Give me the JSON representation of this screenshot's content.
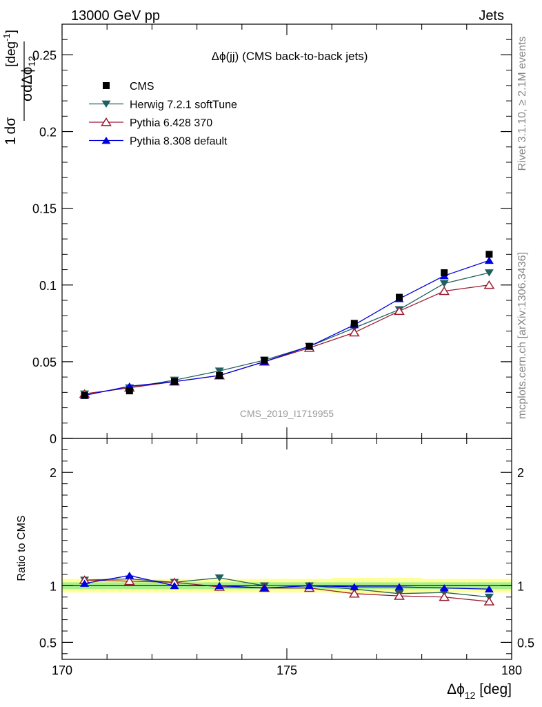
{
  "header": {
    "left": "13000 GeV pp",
    "right": "Jets"
  },
  "side_labels": {
    "rivet": "Rivet 3.1.10, ≥ 2.1M events",
    "mcplots": "mcplots.cern.ch [arXiv:1306.3436]"
  },
  "watermark": "CMS_2019_I1719955",
  "chart_data": [
    {
      "type": "scatter",
      "title": "Δϕ(jj) (CMS back-to-back jets)",
      "ylabel": "1/σ dσ/dΔϕ12 [deg⁻¹]",
      "xlim": [
        170,
        180
      ],
      "ylim": [
        0,
        0.27
      ],
      "y_ticks": [
        "0",
        "0.05",
        "0.1",
        "0.15",
        "0.2",
        "0.25"
      ],
      "x": [
        170.5,
        171.5,
        172.5,
        173.5,
        174.5,
        175.5,
        176.5,
        177.5,
        178.5,
        179.5
      ],
      "series": [
        {
          "name": "CMS",
          "color": "#000000",
          "marker": "square",
          "values": [
            0.028,
            0.031,
            0.037,
            0.041,
            0.051,
            0.06,
            0.075,
            0.092,
            0.108,
            0.12
          ]
        },
        {
          "name": "Herwig 7.2.1 softTune",
          "color": "#1f5f5f",
          "marker": "triangle-down",
          "values": [
            0.029,
            0.033,
            0.038,
            0.044,
            0.051,
            0.06,
            0.072,
            0.084,
            0.101,
            0.108
          ]
        },
        {
          "name": "Pythia 6.428 370",
          "color": "#9b1b30",
          "marker": "triangle-up-open",
          "values": [
            0.029,
            0.033,
            0.037,
            0.041,
            0.05,
            0.059,
            0.069,
            0.083,
            0.096,
            0.1
          ]
        },
        {
          "name": "Pythia 8.308 default",
          "color": "#0000dd",
          "marker": "triangle-up",
          "values": [
            0.028,
            0.034,
            0.037,
            0.041,
            0.05,
            0.06,
            0.074,
            0.091,
            0.106,
            0.116
          ]
        }
      ]
    },
    {
      "type": "scatter",
      "ylabel": "Ratio to CMS",
      "xlabel": "Δϕ12 [deg]",
      "xlim": [
        170,
        180
      ],
      "ylim": [
        0.35,
        2.3
      ],
      "y_ticks": [
        "0.5",
        "1",
        "2"
      ],
      "x_ticks": [
        "170",
        "175",
        "180"
      ],
      "band_outer": [
        0.06,
        0.06,
        0.06,
        0.06,
        0.06,
        0.06,
        0.07,
        0.07,
        0.06,
        0.06
      ],
      "band_inner": [
        0.03,
        0.03,
        0.03,
        0.03,
        0.03,
        0.03,
        0.03,
        0.03,
        0.03,
        0.03
      ],
      "x": [
        170.5,
        171.5,
        172.5,
        173.5,
        174.5,
        175.5,
        176.5,
        177.5,
        178.5,
        179.5
      ],
      "series": [
        {
          "name": "Herwig 7.2.1 softTune",
          "color": "#1f5f5f",
          "marker": "triangle-down",
          "values": [
            1.05,
            1.06,
            1.03,
            1.07,
            1.0,
            1.0,
            0.97,
            0.93,
            0.94,
            0.9
          ]
        },
        {
          "name": "Pythia 6.428 370",
          "color": "#9b1b30",
          "marker": "triangle-up-open",
          "values": [
            1.05,
            1.04,
            1.03,
            0.99,
            0.98,
            0.98,
            0.93,
            0.91,
            0.9,
            0.86
          ]
        },
        {
          "name": "Pythia 8.308 default",
          "color": "#0000dd",
          "marker": "triangle-up",
          "values": [
            1.02,
            1.09,
            1.0,
            1.0,
            0.98,
            1.0,
            0.99,
            0.99,
            0.98,
            0.97
          ]
        }
      ]
    }
  ]
}
